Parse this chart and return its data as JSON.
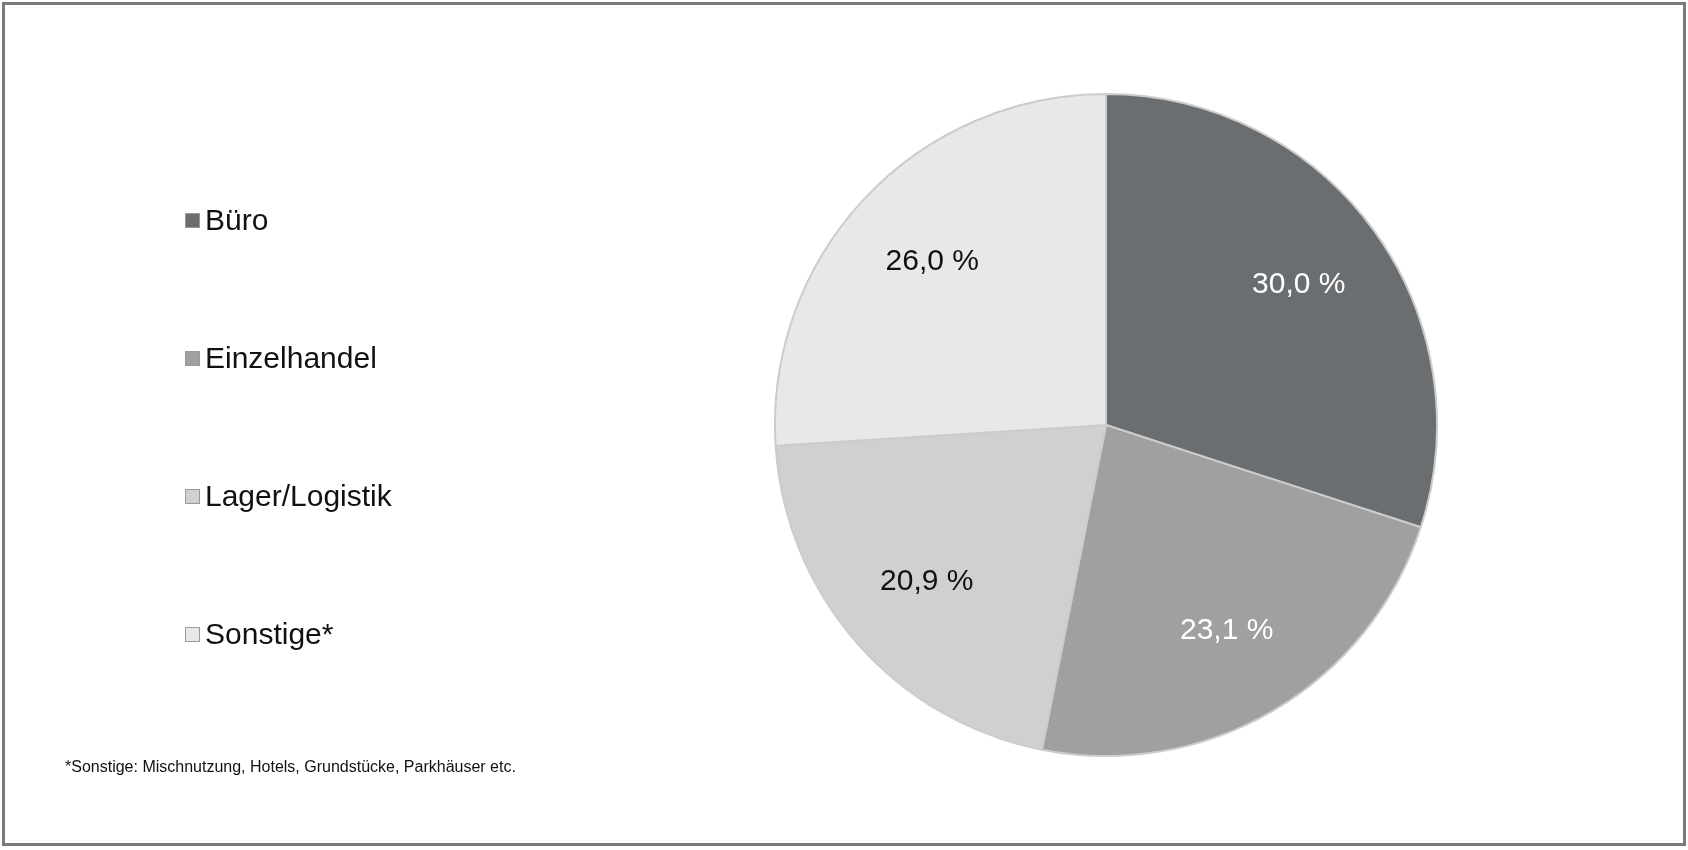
{
  "chart_data": {
    "type": "pie",
    "categories": [
      "Büro",
      "Einzelhandel",
      "Lager/Logistik",
      "Sonstige*"
    ],
    "values": [
      30.0,
      23.1,
      20.9,
      26.0
    ],
    "colors": [
      "#6b6e70",
      "#a0a0a0",
      "#d0d0d0",
      "#e8e8e8"
    ],
    "value_labels": [
      "30,0 %",
      "23,1 %",
      "20,9 %",
      "26,0 %"
    ],
    "legend": "left",
    "annotations": [
      "*Sonstige: Mischnutzung, Hotels, Grundstücke, Parkhäuser etc."
    ]
  }
}
